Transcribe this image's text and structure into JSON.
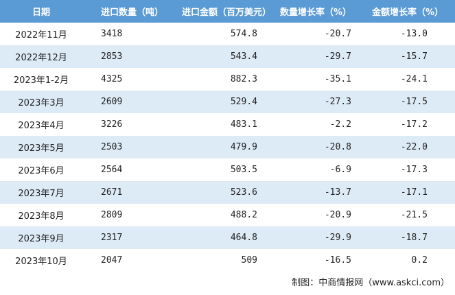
{
  "table": {
    "header": [
      "日期",
      "进口数量（吨）",
      "进口金额（百万美元）",
      "数量增长率（%）",
      "金额增长率（%）"
    ],
    "rows": [
      [
        "2022年11月",
        "3418",
        "574.8",
        "-20.7",
        "-13.0"
      ],
      [
        "2022年12月",
        "2853",
        "543.4",
        "-29.7",
        "-15.7"
      ],
      [
        "2023年1-2月",
        "4325",
        "882.3",
        "-35.1",
        "-24.1"
      ],
      [
        "2023年3月",
        "2609",
        "529.4",
        "-27.3",
        "-17.5"
      ],
      [
        "2023年4月",
        "3226",
        "483.1",
        "-2.2",
        "-17.2"
      ],
      [
        "2023年5月",
        "2503",
        "479.9",
        "-20.8",
        "-22.0"
      ],
      [
        "2023年6月",
        "2564",
        "503.5",
        "-6.9",
        "-17.3"
      ],
      [
        "2023年7月",
        "2671",
        "523.6",
        "-13.7",
        "-17.1"
      ],
      [
        "2023年8月",
        "2809",
        "488.2",
        "-20.9",
        "-21.5"
      ],
      [
        "2023年9月",
        "2317",
        "464.8",
        "-29.9",
        "-18.7"
      ],
      [
        "2023年10月",
        "2047",
        "509",
        "-16.5",
        "0.2"
      ]
    ]
  },
  "footer": "制图：中商情报网（www.askci.com）"
}
